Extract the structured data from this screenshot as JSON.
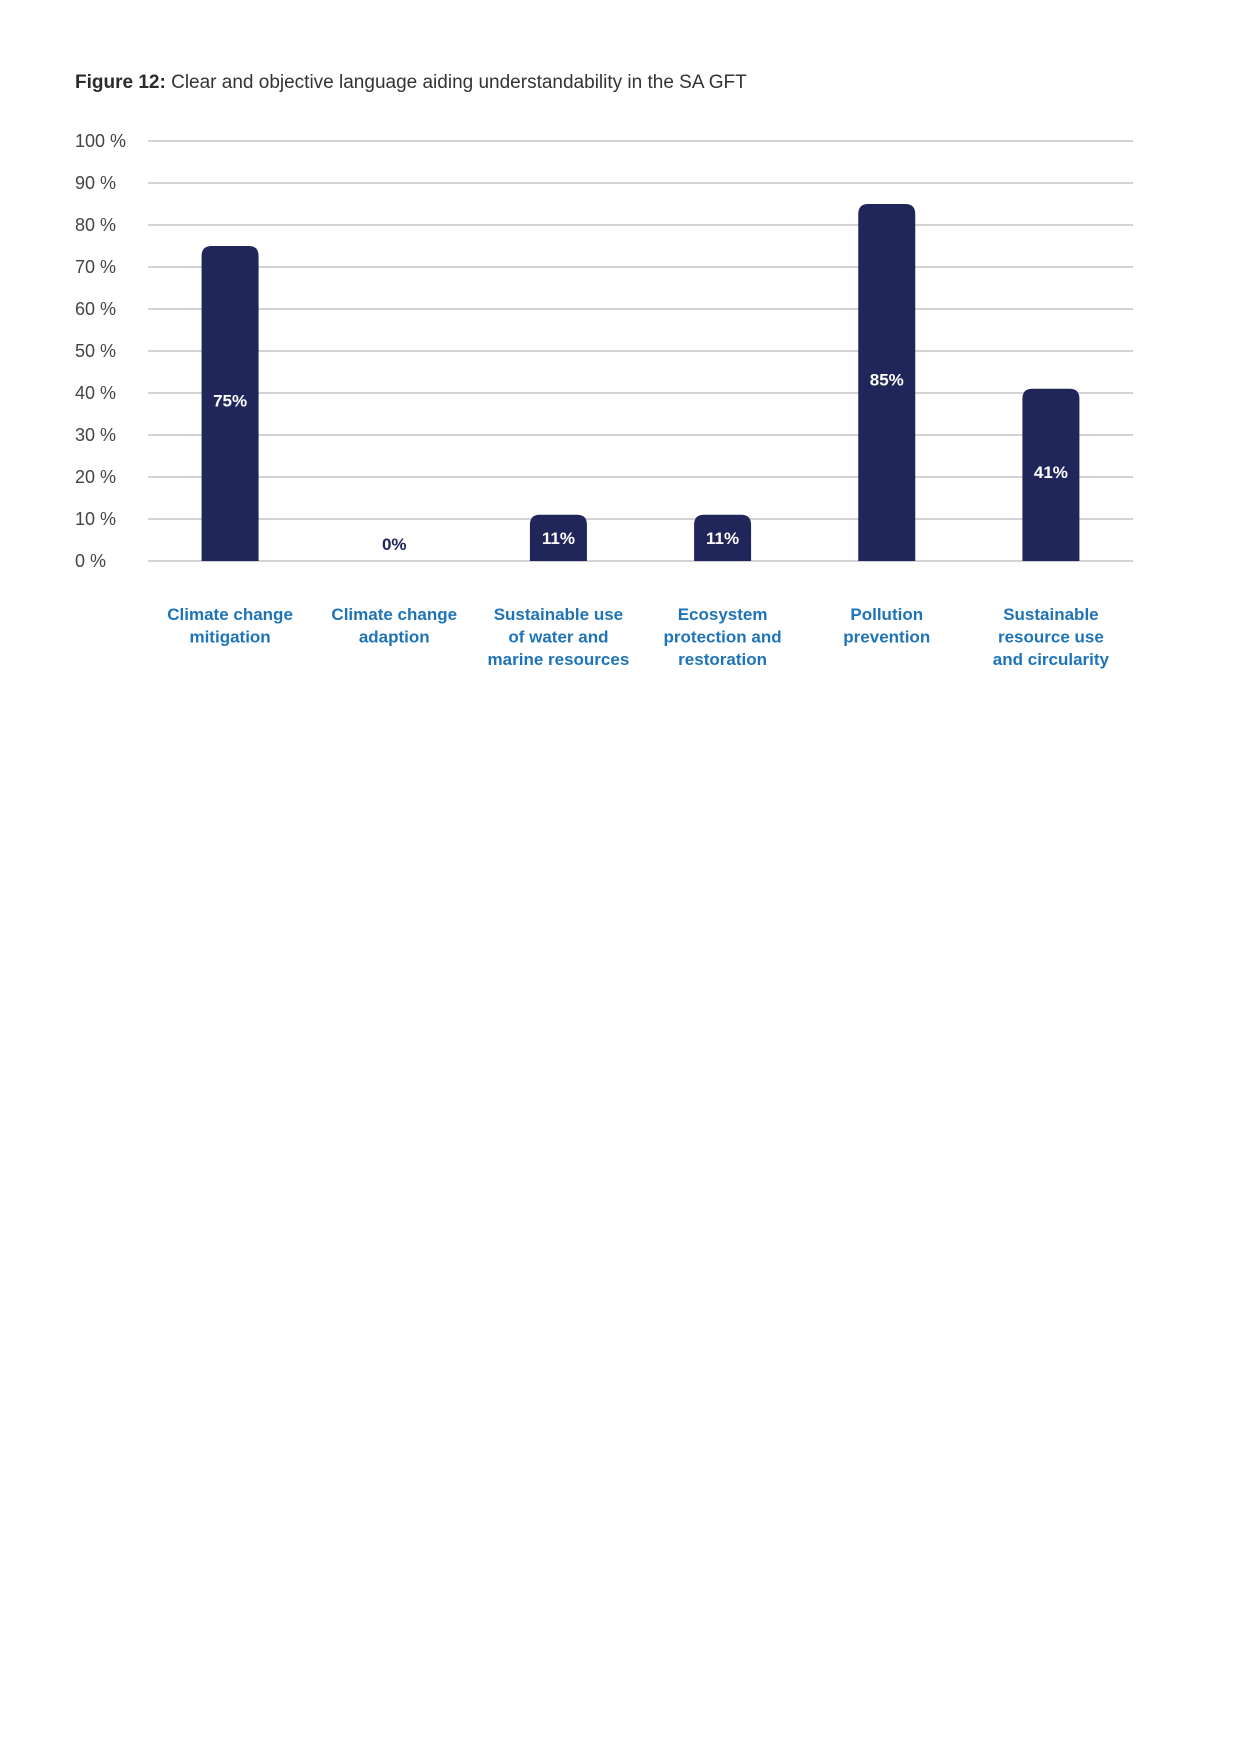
{
  "figure": {
    "label": "Figure 12:",
    "caption": "Clear and objective language aiding understandability in the SA GFT"
  },
  "colors": {
    "bar": "#21265a",
    "bar_label_inside": "#ffffff",
    "bar_label_outside": "#21265a",
    "category_label": "#1f74b8",
    "grid": "#b9b9b9",
    "tick_label": "#444444"
  },
  "chart_data": {
    "type": "bar",
    "categories": [
      [
        "Climate change",
        "mitigation"
      ],
      [
        "Climate change",
        "adaption"
      ],
      [
        "Sustainable use",
        "of water and",
        "marine resources"
      ],
      [
        "Ecosystem",
        "protection and",
        "restoration"
      ],
      [
        "Pollution",
        "prevention"
      ],
      [
        "Sustainable",
        "resource use",
        "and circularity"
      ]
    ],
    "values": [
      75,
      0,
      11,
      11,
      85,
      41
    ],
    "value_labels": [
      "75%",
      "0%",
      "11%",
      "11%",
      "85%",
      "41%"
    ],
    "yticks": [
      "0 %",
      "10 %",
      "20 %",
      "30 %",
      "40 %",
      "50 %",
      "60 %",
      "70 %",
      "80 %",
      "90 %",
      "100 %"
    ],
    "ylim": [
      0,
      100
    ],
    "grid": true,
    "legend": "none",
    "xlabel": "",
    "ylabel": ""
  }
}
